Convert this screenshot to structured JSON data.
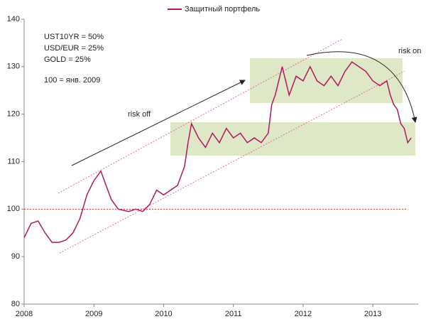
{
  "chart_data": {
    "type": "line",
    "series": [
      {
        "name": "Защитный портфель",
        "color": "#b0185e",
        "x": [
          2008.0,
          2008.1,
          2008.2,
          2008.3,
          2008.4,
          2008.5,
          2008.6,
          2008.7,
          2008.8,
          2008.9,
          2009.0,
          2009.1,
          2009.15,
          2009.25,
          2009.35,
          2009.5,
          2009.6,
          2009.7,
          2009.8,
          2009.9,
          2010.0,
          2010.1,
          2010.2,
          2010.3,
          2010.35,
          2010.4,
          2010.5,
          2010.6,
          2010.7,
          2010.8,
          2010.9,
          2011.0,
          2011.1,
          2011.2,
          2011.3,
          2011.4,
          2011.5,
          2011.55,
          2011.6,
          2011.7,
          2011.75,
          2011.8,
          2011.9,
          2012.0,
          2012.1,
          2012.2,
          2012.3,
          2012.4,
          2012.5,
          2012.6,
          2012.7,
          2012.8,
          2012.9,
          2013.0,
          2013.1,
          2013.2,
          2013.25,
          2013.3,
          2013.35,
          2013.4,
          2013.45,
          2013.5,
          2013.55
        ],
        "values": [
          94,
          97,
          97.5,
          95,
          93,
          93,
          93.5,
          95,
          98,
          103,
          106,
          108,
          106,
          102,
          100,
          99.5,
          100,
          99.5,
          101,
          104,
          103,
          104,
          105,
          109,
          114,
          118,
          115,
          113,
          116,
          114,
          117,
          115,
          116,
          114,
          115,
          114,
          116,
          122,
          124,
          130,
          127,
          124,
          128,
          127,
          130,
          127,
          126,
          128,
          126,
          129,
          131,
          130,
          129,
          127,
          126,
          127,
          124,
          122,
          121,
          118,
          117,
          114,
          115
        ]
      }
    ],
    "xlim": [
      2008,
      2013.65
    ],
    "xticks": [
      2008,
      2009,
      2010,
      2011,
      2012,
      2013
    ],
    "ylim": [
      80,
      140
    ],
    "yticks": [
      80,
      90,
      100,
      110,
      120,
      130,
      140
    ],
    "reference_line": 100,
    "annotations": [
      "UST10YR = 50%",
      "USD/EUR = 25%",
      "GOLD = 25%",
      "100 = янв. 2009",
      "risk off",
      "risk on"
    ]
  }
}
